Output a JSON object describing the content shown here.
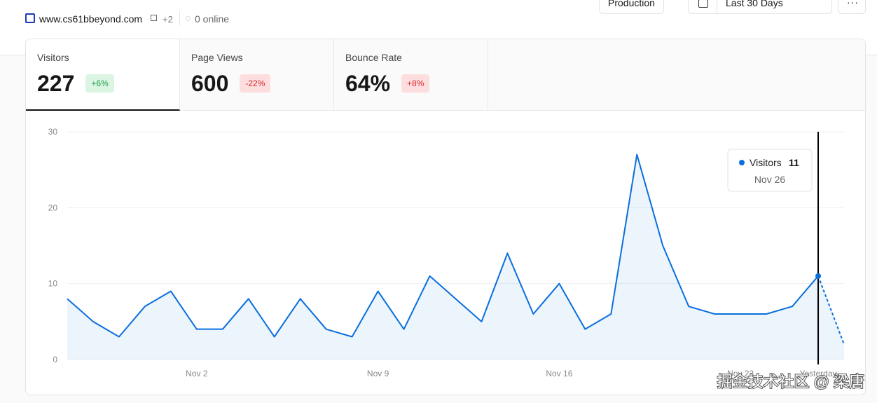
{
  "header": {
    "site": "www.cs61bbeyond.com",
    "extra": "+2",
    "online": "0 online",
    "environment": "Production",
    "range": "Last 30 Days"
  },
  "tabs": [
    {
      "label": "Visitors",
      "value": "227",
      "change": "+6%",
      "trend": "up"
    },
    {
      "label": "Page Views",
      "value": "600",
      "change": "-22%",
      "trend": "down"
    },
    {
      "label": "Bounce Rate",
      "value": "64%",
      "change": "+8%",
      "trend": "down"
    }
  ],
  "chart_data": {
    "type": "area",
    "categories": [
      null,
      null,
      null,
      null,
      null,
      "Nov 2",
      null,
      null,
      null,
      null,
      null,
      null,
      "Nov 9",
      null,
      null,
      null,
      null,
      null,
      null,
      "Nov 16",
      null,
      null,
      null,
      null,
      null,
      null,
      "Nov 23",
      null,
      null,
      "Yesterday",
      null
    ],
    "series": [
      {
        "name": "Visitors",
        "color": "#0a6fdc",
        "values": [
          8,
          5,
          3,
          7,
          9,
          4,
          4,
          8,
          3,
          8,
          4,
          3,
          9,
          4,
          11,
          8,
          5,
          14,
          6,
          10,
          4,
          6,
          27,
          15,
          7,
          6,
          6,
          6,
          7,
          11,
          2
        ]
      }
    ],
    "ylim": [
      0,
      30
    ],
    "yticks": [
      0,
      10,
      20,
      30
    ],
    "grid": true,
    "incomplete_last_point": true,
    "tooltip": {
      "name": "Visitors",
      "value": "11",
      "date": "Nov 26",
      "index": 29
    }
  },
  "watermark": "掘金技术社区 @ 梁唐"
}
